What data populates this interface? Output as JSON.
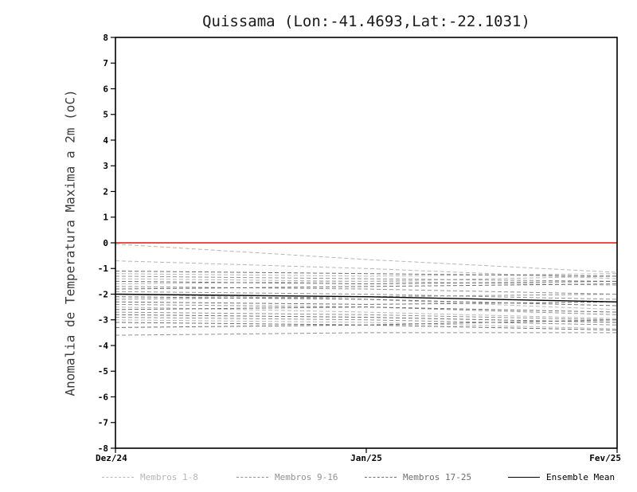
{
  "chart_data": {
    "type": "line",
    "title": "Quissama (Lon:-41.4693,Lat:-22.1031)",
    "ylabel": "Anomalia de Temperatura Maxima a 2m (oC)",
    "xlabel": "",
    "ylim": [
      -8,
      8
    ],
    "ytick_step": 1,
    "x_ticks": [
      "Dez/24",
      "Jan/25",
      "Fev/25"
    ],
    "grid": false,
    "legend_position": "bottom",
    "zero_line": {
      "value": 0,
      "color": "#e01515"
    },
    "groups": [
      {
        "name": "Membros 1-8",
        "color": "#b6b6b6",
        "style": "dashed",
        "members": [
          [
            -0.05,
            -0.65,
            -1.15
          ],
          [
            -0.7,
            -1.0,
            -1.4
          ],
          [
            -1.2,
            -1.3,
            -1.2
          ],
          [
            -1.4,
            -1.5,
            -1.65
          ],
          [
            -1.6,
            -1.5,
            -1.3
          ],
          [
            -2.0,
            -2.2,
            -2.6
          ],
          [
            -2.5,
            -2.7,
            -2.95
          ],
          [
            -3.0,
            -3.1,
            -3.35
          ]
        ]
      },
      {
        "name": "Membros 9-16",
        "color": "#919191",
        "style": "dashed",
        "members": [
          [
            -1.3,
            -1.4,
            -1.5
          ],
          [
            -1.7,
            -1.8,
            -2.0
          ],
          [
            -1.9,
            -2.0,
            -2.2
          ],
          [
            -2.2,
            -2.1,
            -2.0
          ],
          [
            -2.4,
            -2.5,
            -2.8
          ],
          [
            -2.7,
            -2.8,
            -3.0
          ],
          [
            -2.9,
            -3.0,
            -3.2
          ],
          [
            -3.6,
            -3.5,
            -3.5
          ]
        ]
      },
      {
        "name": "Membros 17-25",
        "color": "#6f6f6f",
        "style": "dashed",
        "members": [
          [
            -1.1,
            -1.2,
            -1.3
          ],
          [
            -1.5,
            -1.6,
            -1.5
          ],
          [
            -1.8,
            -1.7,
            -1.6
          ],
          [
            -2.1,
            -2.2,
            -2.45
          ],
          [
            -2.3,
            -2.4,
            -2.3
          ],
          [
            -2.6,
            -2.5,
            -2.7
          ],
          [
            -2.8,
            -2.9,
            -3.1
          ],
          [
            -3.1,
            -3.2,
            -3.4
          ],
          [
            -3.3,
            -3.2,
            -3.0
          ]
        ]
      }
    ],
    "ensemble_mean": {
      "name": "Ensemble Mean",
      "color": "#000000",
      "style": "solid",
      "values": [
        -2.0,
        -2.1,
        -2.3
      ]
    },
    "legend": [
      {
        "label": "Membros 1-8",
        "color": "#b6b6b6",
        "style": "dashed"
      },
      {
        "label": "Membros 9-16",
        "color": "#919191",
        "style": "dashed"
      },
      {
        "label": "Membros 17-25",
        "color": "#6f6f6f",
        "style": "dashed"
      },
      {
        "label": "Ensemble Mean",
        "color": "#000000",
        "style": "solid"
      }
    ]
  }
}
